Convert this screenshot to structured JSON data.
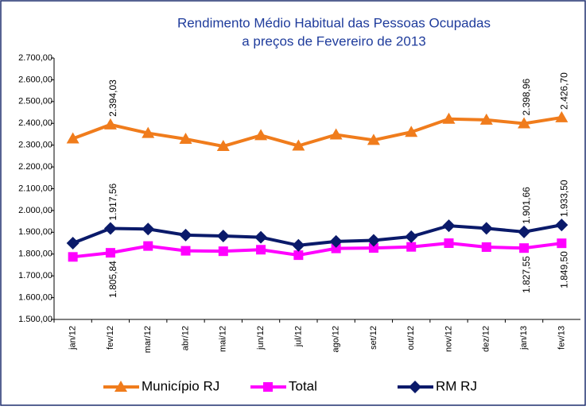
{
  "chart_data": {
    "type": "line",
    "title": "Rendimento Médio Habitual das Pessoas Ocupadas",
    "subtitle": "a preços de Fevereiro de 2013",
    "categories": [
      "jan/12",
      "fev/12",
      "mar/12",
      "abr/12",
      "mai/12",
      "jun/12",
      "jul/12",
      "ago/12",
      "set/12",
      "out/12",
      "nov/12",
      "dez/12",
      "jan/13",
      "fev/13"
    ],
    "series": [
      {
        "name": "Município RJ",
        "color": "#f07c1c",
        "marker": "triangle",
        "label_side": "above",
        "values": [
          2330,
          2394.03,
          2355,
          2328,
          2295,
          2345,
          2297,
          2348,
          2323,
          2360,
          2420,
          2416,
          2398.96,
          2426.7
        ],
        "value_labels": [
          null,
          "2.394,03",
          null,
          null,
          null,
          null,
          null,
          null,
          null,
          null,
          null,
          null,
          "2.398,96",
          "2.426,70"
        ]
      },
      {
        "name": "Total",
        "color": "#ff00ff",
        "marker": "square",
        "label_side": "below",
        "values": [
          1787,
          1805.84,
          1837,
          1815,
          1813,
          1820,
          1795,
          1826,
          1828,
          1833,
          1850,
          1832,
          1827.55,
          1849.5
        ],
        "value_labels": [
          null,
          "1.805,84",
          null,
          null,
          null,
          null,
          null,
          null,
          null,
          null,
          null,
          null,
          "1.827,55",
          "1.849,50"
        ]
      },
      {
        "name": "RM RJ",
        "color": "#0a1a6a",
        "marker": "diamond",
        "label_side": "above",
        "values": [
          1850,
          1917.56,
          1915,
          1887,
          1883,
          1877,
          1840,
          1858,
          1863,
          1880,
          1930,
          1918,
          1901.66,
          1933.5
        ],
        "value_labels": [
          null,
          "1.917,56",
          null,
          null,
          null,
          null,
          null,
          null,
          null,
          null,
          null,
          null,
          "1.901,66",
          "1.933,50"
        ]
      }
    ],
    "ylim": [
      1500,
      2700
    ],
    "yticks": [
      {
        "value": 1500,
        "label": "1.500,00"
      },
      {
        "value": 1600,
        "label": "1.600,00"
      },
      {
        "value": 1700,
        "label": "1.700,00"
      },
      {
        "value": 1800,
        "label": "1.800,00"
      },
      {
        "value": 1900,
        "label": "1.900,00"
      },
      {
        "value": 2000,
        "label": "2.000,00"
      },
      {
        "value": 2100,
        "label": "2.100,00"
      },
      {
        "value": 2200,
        "label": "2.200,00"
      },
      {
        "value": 2300,
        "label": "2.300,00"
      },
      {
        "value": 2400,
        "label": "2.400,00"
      },
      {
        "value": 2500,
        "label": "2.500,00"
      },
      {
        "value": 2600,
        "label": "2.600,00"
      },
      {
        "value": 2700,
        "label": "2.700,00"
      }
    ],
    "grid": false,
    "legend": "bottom"
  }
}
